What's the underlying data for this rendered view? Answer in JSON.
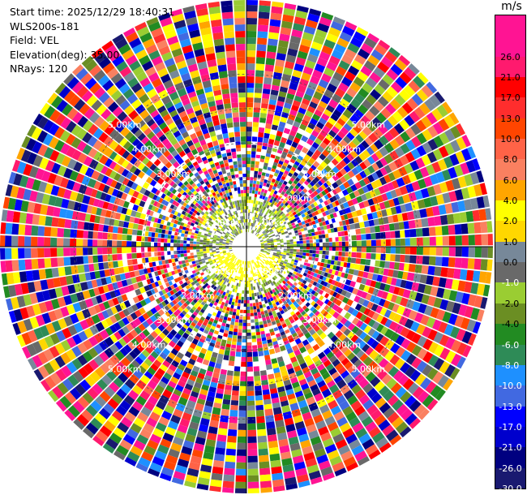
{
  "header": {
    "start_time": "Start time: 2025/12/29 18:40:31",
    "instrument": "WLS200s-181",
    "field": "Field: VEL",
    "elevation": "Elevation(deg): 35.00",
    "nrays": "NRays: 120"
  },
  "colorbar": {
    "unit": "m/s",
    "segments": [
      {
        "color": "#ff1493",
        "label": ""
      },
      {
        "color": "#ff1493",
        "label": "26.0"
      },
      {
        "color": "#ff1a6e",
        "label": "21.0"
      },
      {
        "color": "#ff0000",
        "label": "17.0"
      },
      {
        "color": "#ff2d2d",
        "label": "13.0"
      },
      {
        "color": "#ff4500",
        "label": "10.0"
      },
      {
        "color": "#ff6347",
        "label": "8.0"
      },
      {
        "color": "#fa8060",
        "label": "6.0"
      },
      {
        "color": "#ffa500",
        "label": "4.0"
      },
      {
        "color": "#ffff00",
        "label": "2.0"
      },
      {
        "color": "#ffd700",
        "label": "1.0"
      },
      {
        "color": "#778899",
        "label": "0.0"
      },
      {
        "color": "#696969",
        "label": "-1.0"
      },
      {
        "color": "#9acd32",
        "label": "-2.0"
      },
      {
        "color": "#6b8e23",
        "label": "-4.0"
      },
      {
        "color": "#228b22",
        "label": "-6.0"
      },
      {
        "color": "#2e8b57",
        "label": "-8.0"
      },
      {
        "color": "#1e90ff",
        "label": "-10.0"
      },
      {
        "color": "#4169e1",
        "label": "-13.0"
      },
      {
        "color": "#0000ff",
        "label": "-17.0"
      },
      {
        "color": "#0000cd",
        "label": "-21.0"
      },
      {
        "color": "#000080",
        "label": "-26.0"
      },
      {
        "color": "#191970",
        "label": "-30.0"
      }
    ]
  },
  "chart_data": {
    "type": "heatmap",
    "projection": "polar-ppi",
    "field": "VEL",
    "nrays": 120,
    "range_rings_km": [
      1.0,
      2.0,
      3.0,
      4.0,
      5.0
    ],
    "ring_labels": [
      "1.00km",
      "2.00km",
      "3.00km",
      "4.00km",
      "5.00km"
    ],
    "max_range_km": 7.15,
    "colormap_bounds": [
      -30,
      -26,
      -21,
      -17,
      -13,
      -10,
      -8,
      -6,
      -4,
      -2,
      -1,
      0,
      1,
      2,
      4,
      6,
      8,
      10,
      13,
      17,
      21,
      26
    ],
    "center_mean_velocity_ms": -2.0
  }
}
